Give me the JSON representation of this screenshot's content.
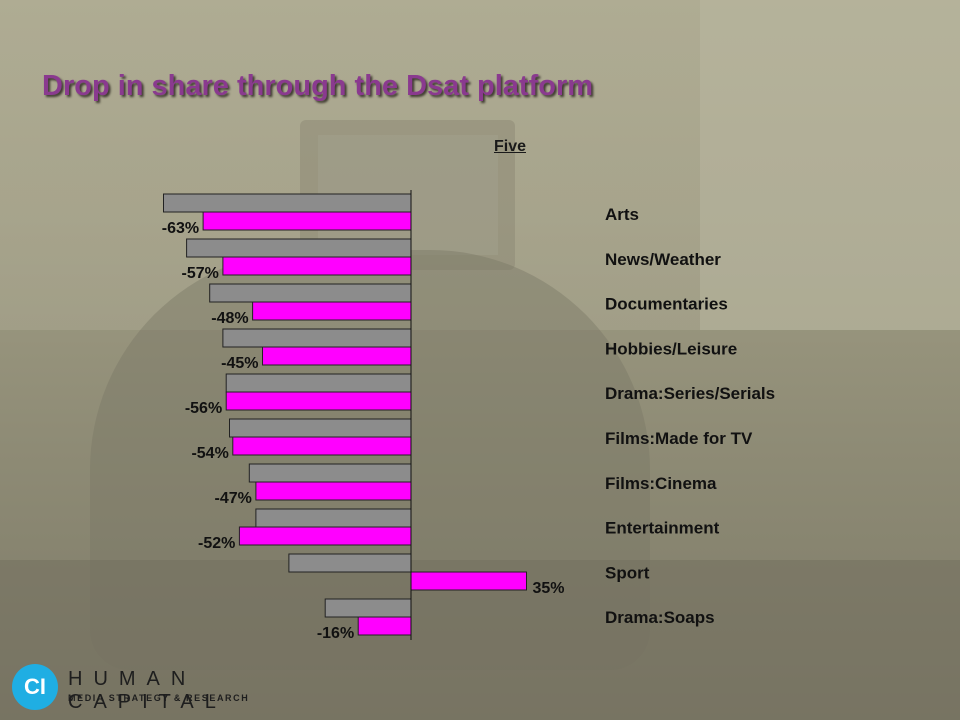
{
  "title": "Drop in share through the Dsat platform",
  "series_label": "Five",
  "logo": {
    "mark": "CI",
    "name": "HUMAN CAPITAL",
    "tagline": "MEDIA STRATEGY & RESEARCH"
  },
  "colors": {
    "title": "#8a3a8f",
    "magenta_bar": "#ff00ff",
    "grey_bar": "#8c8c8c"
  },
  "chart_data": {
    "type": "bar",
    "orientation": "horizontal",
    "categories": [
      "Arts",
      "News/Weather",
      "Documentaries",
      "Hobbies/Leisure",
      "Drama:Series/Serials",
      "Films:Made for TV",
      "Films:Cinema",
      "Entertainment",
      "Sport",
      "Drama:Soaps"
    ],
    "series": [
      {
        "values": [
          -75,
          -68,
          -61,
          -57,
          -56,
          -55,
          -49,
          -47,
          -37,
          -26
        ]
      },
      {
        "name": "Five",
        "values": [
          -63,
          -57,
          -48,
          -45,
          -56,
          -54,
          -47,
          -52,
          35,
          -16
        ]
      }
    ],
    "data_labels": [
      "-63%",
      "-57%",
      "-48%",
      "-45%",
      "-56%",
      "-54%",
      "-47%",
      "-52%",
      "35%",
      "-16%"
    ],
    "xlim": [
      -75,
      35
    ],
    "legend": "none",
    "grid": false
  }
}
